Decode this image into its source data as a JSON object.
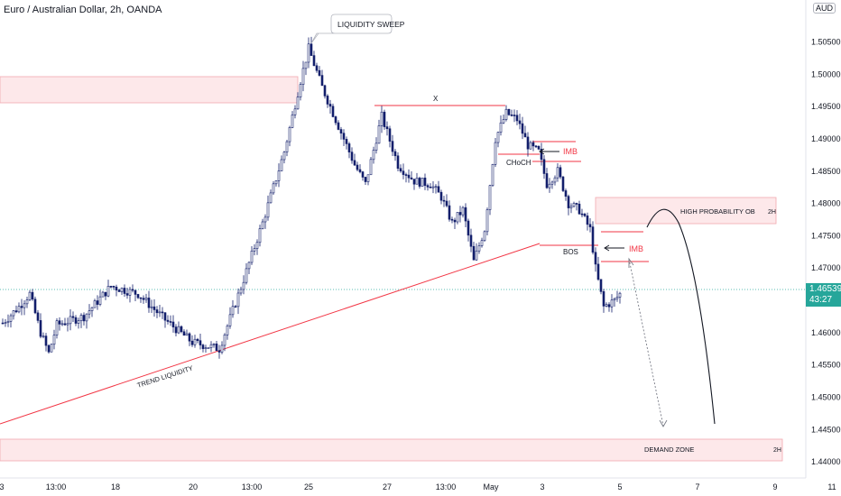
{
  "chart_data": {
    "type": "candlestick",
    "title": "Euro / Australian Dollar, 2h, OANDA",
    "currency": "AUD",
    "y_ticks": [
      "1.50500",
      "1.50000",
      "1.49500",
      "1.49000",
      "1.48500",
      "1.48000",
      "1.47500",
      "1.47000",
      "1.46000",
      "1.45500",
      "1.45000",
      "1.44500",
      "1.44000"
    ],
    "ylim": [
      1.4375,
      1.5115
    ],
    "x_ticks": [
      "3",
      "13:00",
      "18",
      "20",
      "13:00",
      "25",
      "27",
      "13:00",
      "May",
      "3",
      "5",
      "7",
      "9",
      "11"
    ],
    "last_price": "1.46539",
    "countdown": "43:27",
    "colors": {
      "candle": "#131f6b",
      "bull_fill": "#ffffff",
      "zone_fill": "#fde8ea",
      "zone_border": "#f2a9b0",
      "red": "#f23645",
      "price_line": "#26a69a",
      "arrow": "#131722"
    },
    "candles": [],
    "annotations": {
      "liquidity_sweep": "LIQUIDITY SWEEP",
      "x_label": "X",
      "choch": "CHoCH",
      "bos": "BOS",
      "imb_1": "IMB",
      "imb_2": "IMB",
      "high_prob_ob": "HIGH PROBABILITY OB",
      "high_prob_ob_tf": "2H",
      "demand_zone": "DEMAND ZONE",
      "demand_zone_tf": "2H",
      "trend_liquidity": "TREND LIQUIDITY"
    }
  }
}
